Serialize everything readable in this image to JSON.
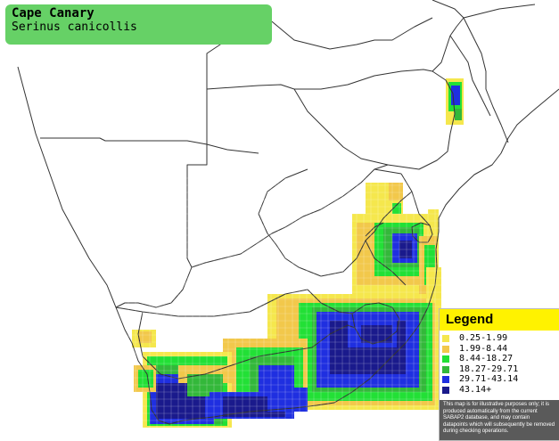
{
  "species": {
    "common_name": "Cape Canary",
    "scientific_name": "Serinus canicollis"
  },
  "colors": {
    "title_background": "#66d166",
    "legend_header": "#fff200",
    "disclaimer_background": "#5a5a5a",
    "border_lines": "#333333"
  },
  "legend": {
    "title": "Legend",
    "items": [
      {
        "label": "0.25-1.99",
        "color": "#f5e74d"
      },
      {
        "label": "1.99-8.44",
        "color": "#f2c84b"
      },
      {
        "label": "8.44-18.27",
        "color": "#22e036"
      },
      {
        "label": "18.27-29.71",
        "color": "#33b83a"
      },
      {
        "label": "29.71-43.14",
        "color": "#1f2fe0"
      },
      {
        "label": "43.14+",
        "color": "#1a1a8c"
      }
    ],
    "disclaimer": "This map is for illustrative purposes only; it is produced automatically from the current SABAP2 database, and may contain datapoints which will subsequently be removed during checking operations."
  }
}
